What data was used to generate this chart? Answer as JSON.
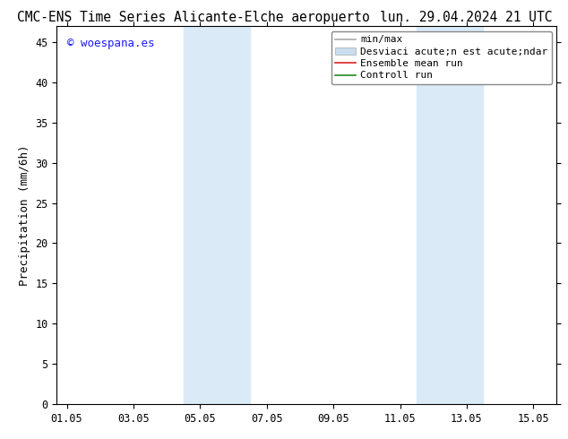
{
  "title_left": "CMC-ENS Time Series Alicante-Elche aeropuerto",
  "title_right": "lun. 29.04.2024 21 UTC",
  "ylabel": "Precipitation (mm/6h)",
  "watermark": "© woespana.es",
  "watermark_color": "#1a1aff",
  "ylim": [
    0,
    47
  ],
  "yticks": [
    0,
    5,
    10,
    15,
    20,
    25,
    30,
    35,
    40,
    45
  ],
  "xlim_start": -0.3,
  "xlim_end": 14.7,
  "xtick_labels": [
    "01.05",
    "03.05",
    "05.05",
    "07.05",
    "09.05",
    "11.05",
    "13.05",
    "15.05"
  ],
  "xtick_positions": [
    0,
    2,
    4,
    6,
    8,
    10,
    12,
    14
  ],
  "shaded_bands": [
    {
      "x_start": 3.5,
      "x_end": 5.5
    },
    {
      "x_start": 10.5,
      "x_end": 12.5
    }
  ],
  "shade_color": "#daeaf7",
  "background_color": "#ffffff",
  "minmax_color": "#aaaaaa",
  "std_color": "#c8ddf0",
  "ensemble_color": "#dd2222",
  "control_color": "#228822",
  "title_fontsize": 10.5,
  "tick_fontsize": 8.5,
  "ylabel_fontsize": 9,
  "watermark_fontsize": 9,
  "legend_fontsize": 8
}
